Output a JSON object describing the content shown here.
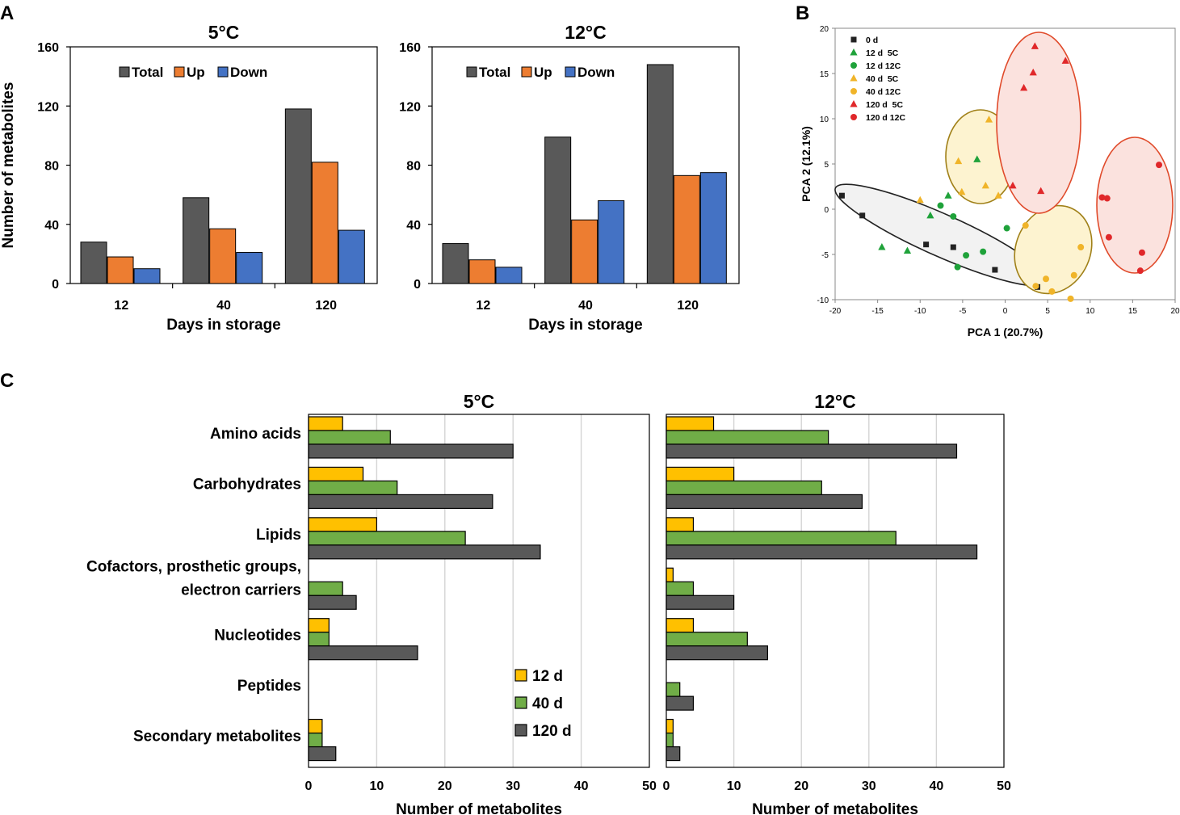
{
  "panel_labels": {
    "a": "A",
    "b": "B",
    "c": "C"
  },
  "colors": {
    "total": "#595959",
    "up": "#ed7d31",
    "down": "#4472c4",
    "d12": "#ffc000",
    "d40": "#70ad47",
    "d120": "#595959",
    "pca_0d": "#222222",
    "pca_12d": "#1fa23a",
    "pca_40d": "#f0b429",
    "pca_120d": "#e0282a",
    "ell_0d_fill": "#f2f2f2",
    "ell_0d_stroke": "#222222",
    "ell_40d_fill": "#fdf3d0",
    "ell_40d_stroke": "#a08018",
    "ell_120d_fill": "#fbe2de",
    "ell_120d_stroke": "#e04a2a"
  },
  "chart_data": [
    {
      "id": "a5",
      "type": "bar",
      "title": "5°C",
      "categories": [
        "12",
        "40",
        "120"
      ],
      "series": [
        {
          "name": "Total",
          "values": [
            28,
            58,
            118
          ]
        },
        {
          "name": "Up",
          "values": [
            18,
            37,
            82
          ]
        },
        {
          "name": "Down",
          "values": [
            10,
            21,
            36
          ]
        }
      ],
      "xlabel": "Days in storage",
      "ylabel": "Number of metabolites",
      "ylim": [
        0,
        160
      ],
      "yticks": [
        "0",
        "40",
        "80",
        "120",
        "160"
      ]
    },
    {
      "id": "a12",
      "type": "bar",
      "title": "12°C",
      "categories": [
        "12",
        "40",
        "120"
      ],
      "series": [
        {
          "name": "Total",
          "values": [
            27,
            99,
            148
          ]
        },
        {
          "name": "Up",
          "values": [
            16,
            43,
            73
          ]
        },
        {
          "name": "Down",
          "values": [
            11,
            56,
            75
          ]
        }
      ],
      "xlabel": "Days in storage",
      "ylabel": "Number of metabolites",
      "ylim": [
        0,
        160
      ],
      "yticks": [
        "0",
        "40",
        "80",
        "120",
        "160"
      ]
    },
    {
      "id": "b",
      "type": "scatter",
      "xlabel": "PCA 1 (20.7%)",
      "ylabel": "PCA 2 (12.1%)",
      "xlim": [
        -20,
        20
      ],
      "ylim": [
        -10,
        20
      ],
      "xticks": [
        "-20",
        "-15",
        "-10",
        "-5",
        "0",
        "5",
        "10",
        "15",
        "20"
      ],
      "yticks": [
        "-10",
        "-5",
        "0",
        "5",
        "10",
        "15",
        "20"
      ],
      "series": [
        {
          "name": "0 d",
          "marker": "square",
          "color_key": "pca_0d",
          "points": [
            [
              -19.2,
              1.5
            ],
            [
              -16.8,
              -0.7
            ],
            [
              -9.3,
              -3.9
            ],
            [
              -6.1,
              -4.2
            ],
            [
              -1.2,
              -6.7
            ],
            [
              3.8,
              -8.6
            ]
          ]
        },
        {
          "name": "12 d  5C",
          "marker": "triangle",
          "color_key": "pca_12d",
          "points": [
            [
              -14.5,
              -4.2
            ],
            [
              -11.5,
              -4.6
            ],
            [
              -8.8,
              -0.7
            ],
            [
              -6.7,
              1.5
            ],
            [
              -3.3,
              5.5
            ]
          ]
        },
        {
          "name": "12 d 12C",
          "marker": "circle",
          "color_key": "pca_12d",
          "points": [
            [
              -7.6,
              0.4
            ],
            [
              -6.1,
              -0.8
            ],
            [
              -5.6,
              -6.4
            ],
            [
              -4.6,
              -5.1
            ],
            [
              -2.6,
              -4.7
            ],
            [
              0.2,
              -2.1
            ]
          ]
        },
        {
          "name": "40 d  5C",
          "marker": "triangle",
          "color_key": "pca_40d",
          "points": [
            [
              -10.0,
              1.0
            ],
            [
              -5.5,
              5.3
            ],
            [
              -5.1,
              1.9
            ],
            [
              -2.3,
              2.6
            ],
            [
              -1.9,
              9.9
            ],
            [
              -0.8,
              1.5
            ]
          ]
        },
        {
          "name": "40 d 12C",
          "marker": "circle",
          "color_key": "pca_40d",
          "points": [
            [
              2.4,
              -1.8
            ],
            [
              3.6,
              -8.5
            ],
            [
              4.8,
              -7.7
            ],
            [
              5.5,
              -9.1
            ],
            [
              7.7,
              -9.9
            ],
            [
              8.1,
              -7.3
            ],
            [
              8.9,
              -4.2
            ]
          ]
        },
        {
          "name": "120 d  5C",
          "marker": "triangle",
          "color_key": "pca_120d",
          "points": [
            [
              0.9,
              2.6
            ],
            [
              2.2,
              13.4
            ],
            [
              3.3,
              15.1
            ],
            [
              3.5,
              18.0
            ],
            [
              4.2,
              2.0
            ],
            [
              7.1,
              16.4
            ]
          ]
        },
        {
          "name": "120 d 12C",
          "marker": "circle",
          "color_key": "pca_120d",
          "points": [
            [
              11.4,
              1.3
            ],
            [
              12.0,
              1.2
            ],
            [
              12.2,
              -3.1
            ],
            [
              15.9,
              -6.8
            ],
            [
              16.1,
              -4.8
            ],
            [
              18.1,
              4.9
            ]
          ]
        }
      ]
    },
    {
      "id": "c5",
      "type": "bar",
      "orientation": "horizontal",
      "title": "5°C",
      "categories": [
        "Amino acids",
        "Carbohydrates",
        "Lipids",
        "Cofactors, prosthetic groups, electron carriers",
        "Nucleotides",
        "Peptides",
        "Secondary metabolites"
      ],
      "category_lines": [
        [
          "Amino acids"
        ],
        [
          "Carbohydrates"
        ],
        [
          "Lipids"
        ],
        [
          "Cofactors, prosthetic groups,",
          "electron carriers"
        ],
        [
          "Nucleotides"
        ],
        [
          "Peptides"
        ],
        [
          "Secondary metabolites"
        ]
      ],
      "series": [
        {
          "name": "12 d",
          "values": [
            5,
            8,
            10,
            0,
            3,
            0,
            2
          ]
        },
        {
          "name": "40 d",
          "values": [
            12,
            13,
            23,
            5,
            3,
            0,
            2
          ]
        },
        {
          "name": "120 d",
          "values": [
            30,
            27,
            34,
            7,
            16,
            0,
            4
          ]
        }
      ],
      "xlabel": "Number of metabolites",
      "xlim": [
        0,
        50
      ],
      "xticks": [
        "0",
        "10",
        "20",
        "30",
        "40",
        "50"
      ],
      "grid": true
    },
    {
      "id": "c12",
      "type": "bar",
      "orientation": "horizontal",
      "title": "12°C",
      "categories": [
        "Amino acids",
        "Carbohydrates",
        "Lipids",
        "Cofactors, prosthetic groups, electron carriers",
        "Nucleotides",
        "Peptides",
        "Secondary metabolites"
      ],
      "series": [
        {
          "name": "12 d",
          "values": [
            7,
            10,
            4,
            1,
            4,
            0,
            1
          ]
        },
        {
          "name": "40 d",
          "values": [
            24,
            23,
            34,
            4,
            12,
            2,
            1
          ]
        },
        {
          "name": "120 d",
          "values": [
            43,
            29,
            46,
            10,
            15,
            4,
            2
          ]
        }
      ],
      "xlabel": "Number of metabolites",
      "xlim": [
        0,
        50
      ],
      "xticks": [
        "0",
        "10",
        "20",
        "30",
        "40",
        "50"
      ],
      "grid": true
    }
  ]
}
